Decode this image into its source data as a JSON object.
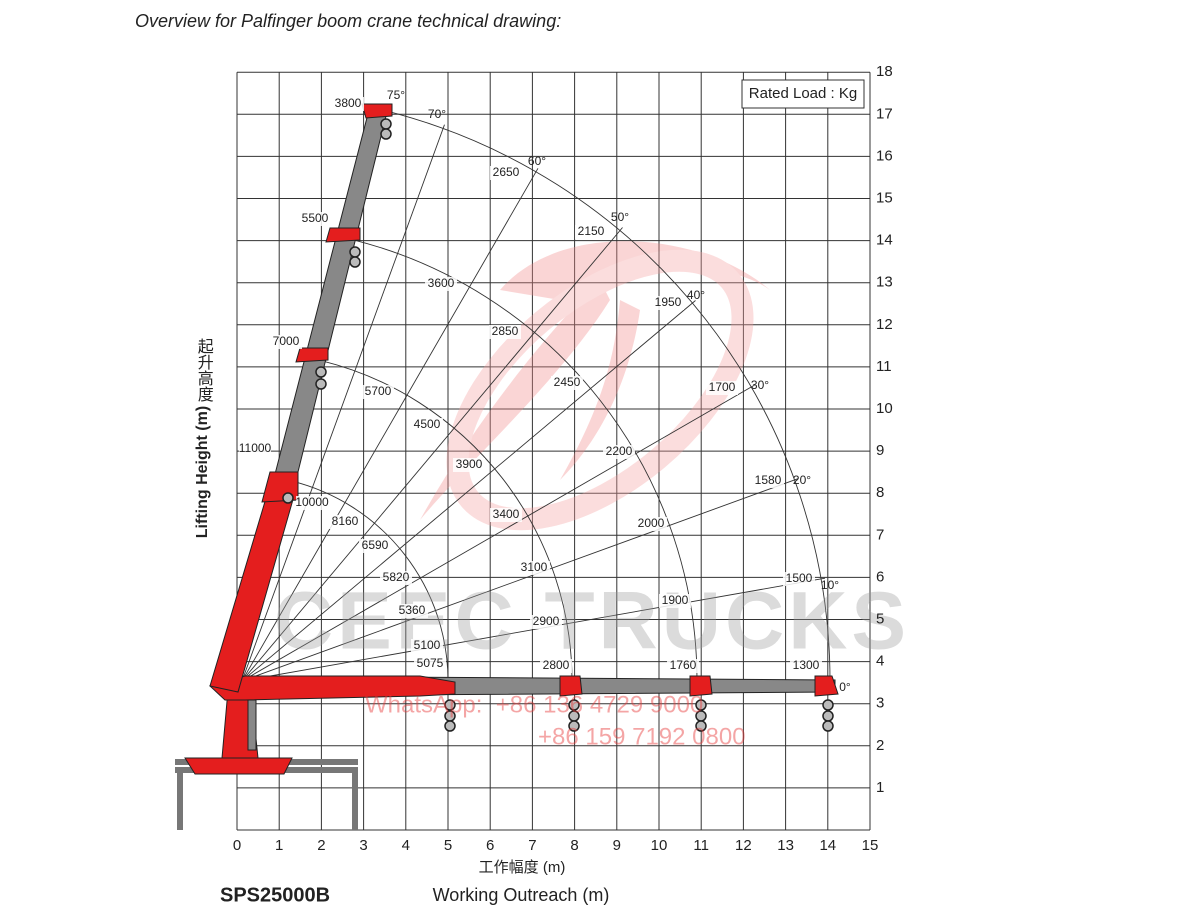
{
  "header": {
    "title": "Overview for Palfinger boom crane technical drawing:"
  },
  "drawing": {
    "rated_load_note": "Rated Load : Kg",
    "y_axis": {
      "label_cn": "起升高度",
      "label": "Lifting Height (m)",
      "ticks": [
        "1",
        "2",
        "3",
        "4",
        "5",
        "6",
        "7",
        "8",
        "9",
        "10",
        "11",
        "12",
        "13",
        "14",
        "15",
        "16",
        "17",
        "18"
      ]
    },
    "x_axis": {
      "label_cn": "工作幅度 (m)",
      "label": "Working Outreach (m)",
      "ticks": [
        "0",
        "1",
        "2",
        "3",
        "4",
        "5",
        "6",
        "7",
        "8",
        "9",
        "10",
        "11",
        "12",
        "13",
        "14",
        "15"
      ]
    },
    "load_labels": [
      "3800",
      "2650",
      "5500",
      "2150",
      "3600",
      "1950",
      "2850",
      "7000",
      "2450",
      "5700",
      "1700",
      "4500",
      "11000",
      "2200",
      "3900",
      "1580",
      "10000",
      "8160",
      "3400",
      "2000",
      "6590",
      "3100",
      "5820",
      "1500",
      "1900",
      "5360",
      "2900",
      "5100",
      "5075",
      "2800",
      "1760",
      "1300"
    ],
    "angle_labels": [
      "75°",
      "70°",
      "60°",
      "50°",
      "40°",
      "30°",
      "20°",
      "10°",
      "0°"
    ],
    "model": "SPS25000B"
  },
  "watermark": {
    "brand": "CEEC TRUCKS",
    "whatsapp": "WhatsApp:  +86 136 4729 9000",
    "phone": "+86 159 7192 0800"
  }
}
